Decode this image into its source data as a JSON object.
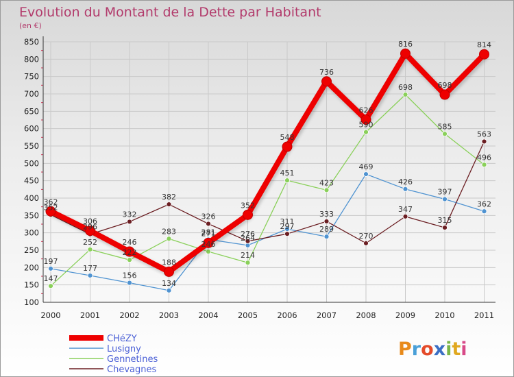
{
  "chart_data": {
    "type": "line",
    "title": "Evolution du Montant de la Dette par Habitant",
    "subtitle": "(en €)",
    "x": [
      "2000",
      "2001",
      "2002",
      "2003",
      "2004",
      "2005",
      "2006",
      "2007",
      "2008",
      "2009",
      "2010",
      "2011"
    ],
    "ylim": [
      100,
      850
    ],
    "yticks": [
      100,
      150,
      200,
      250,
      300,
      350,
      400,
      450,
      500,
      550,
      600,
      650,
      700,
      750,
      800,
      850
    ],
    "grid": true,
    "legend_position": "bottom-left",
    "series": [
      {
        "name": "CHéZY",
        "color": "#ee0000",
        "values": [
          362,
          306,
          246,
          188,
          271,
          352,
          548,
          736,
          626,
          816,
          698,
          814
        ]
      },
      {
        "name": "Lusigny",
        "color": "#4f93d1",
        "values": [
          197,
          177,
          156,
          134,
          281,
          264,
          311,
          289,
          469,
          426,
          397,
          362
        ]
      },
      {
        "name": "Gennetines",
        "color": "#8ad05a",
        "values": [
          147,
          252,
          222,
          283,
          246,
          214,
          451,
          423,
          590,
          698,
          585,
          496
        ]
      },
      {
        "name": "Chevagnes",
        "color": "#6b1e22",
        "values": [
          352,
          296,
          332,
          382,
          326,
          276,
          297,
          333,
          270,
          347,
          315,
          563
        ]
      }
    ]
  },
  "brand": {
    "logo_text": "Proxiti"
  }
}
